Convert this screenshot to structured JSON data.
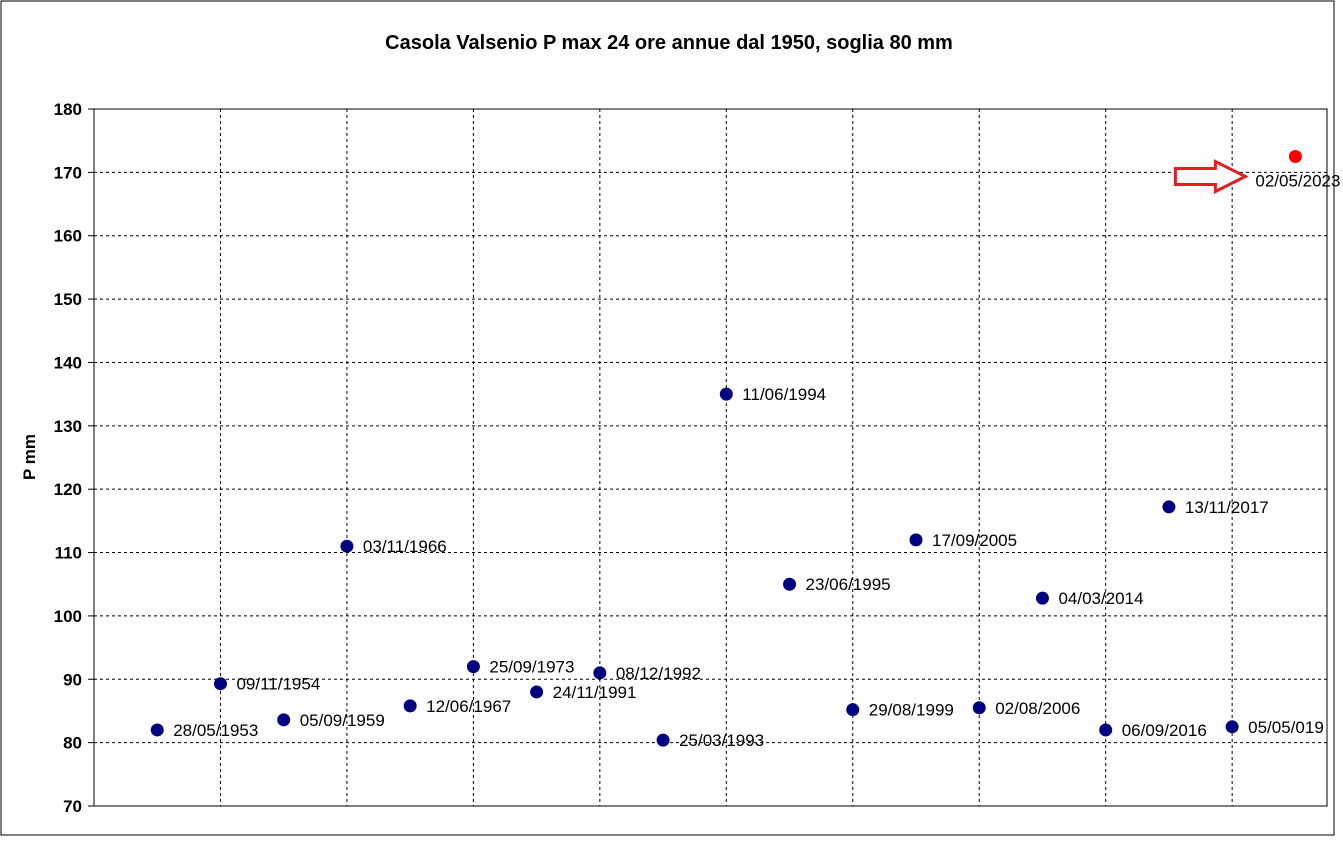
{
  "chart_data": {
    "type": "scatter",
    "title": "Casola Valsenio P max 24 ore annue dal 1950, soglia 80 mm",
    "xlabel": "",
    "ylabel": "P mm",
    "ylim": [
      70,
      180
    ],
    "yticks": [
      70,
      80,
      90,
      100,
      110,
      120,
      130,
      140,
      150,
      160,
      170,
      180
    ],
    "xlim": [
      0,
      19.5
    ],
    "grid": true,
    "legend": "none",
    "marker_color": "#000080",
    "highlight_color": "#ff0000",
    "arrow_color": "#e02020",
    "points": [
      {
        "x": 1,
        "y": 82,
        "label": "28/05/1953"
      },
      {
        "x": 2,
        "y": 89.3,
        "label": "09/11/1954"
      },
      {
        "x": 3,
        "y": 83.6,
        "label": "05/09/1959"
      },
      {
        "x": 4,
        "y": 111,
        "label": "03/11/1966"
      },
      {
        "x": 5,
        "y": 85.8,
        "label": "12/06/1967"
      },
      {
        "x": 6,
        "y": 92,
        "label": "25/09/1973"
      },
      {
        "x": 7,
        "y": 88,
        "label": "24/11/1991"
      },
      {
        "x": 8,
        "y": 91,
        "label": "08/12/1992"
      },
      {
        "x": 9,
        "y": 80.4,
        "label": "25/03/1993"
      },
      {
        "x": 10,
        "y": 135,
        "label": "11/06/1994"
      },
      {
        "x": 11,
        "y": 105,
        "label": "23/06/1995"
      },
      {
        "x": 12,
        "y": 85.2,
        "label": "29/08/1999"
      },
      {
        "x": 13,
        "y": 112,
        "label": "17/09/2005"
      },
      {
        "x": 14,
        "y": 85.5,
        "label": "02/08/2006"
      },
      {
        "x": 15,
        "y": 102.8,
        "label": "04/03/2014"
      },
      {
        "x": 16,
        "y": 82,
        "label": "06/09/2016"
      },
      {
        "x": 17,
        "y": 117.2,
        "label": "13/11/2017"
      },
      {
        "x": 18,
        "y": 82.5,
        "label": "05/05/019"
      },
      {
        "x": 19,
        "y": 172.5,
        "label": "02/05/2023",
        "highlight": true
      }
    ]
  }
}
